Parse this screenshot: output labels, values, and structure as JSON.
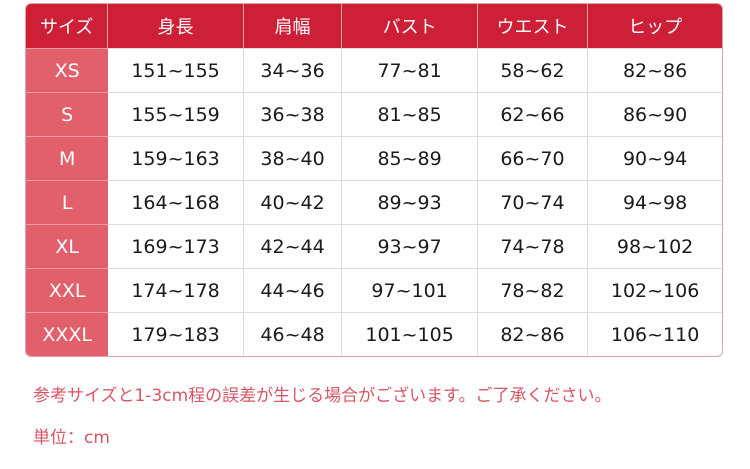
{
  "headers": [
    "サイズ",
    "身長",
    "肩幅",
    "バスト",
    "ウエスト",
    "ヒップ"
  ],
  "rows": [
    [
      "XS",
      "151~155",
      "34~36",
      "77~81",
      "58~62",
      "82~86"
    ],
    [
      "S",
      "155~159",
      "36~38",
      "81~85",
      "62~66",
      "86~90"
    ],
    [
      "M",
      "159~163",
      "38~40",
      "85~89",
      "66~70",
      "90~94"
    ],
    [
      "L",
      "164~168",
      "40~42",
      "89~93",
      "70~74",
      "94~98"
    ],
    [
      "XL",
      "169~173",
      "42~44",
      "93~97",
      "74~78",
      "98~102"
    ],
    [
      "XXL",
      "174~178",
      "44~46",
      "97~101",
      "78~82",
      "102~106"
    ],
    [
      "XXXL",
      "179~183",
      "46~48",
      "101~105",
      "82~86",
      "106~110"
    ]
  ],
  "notes": {
    "disclaimer": "参考サイズと1-3cm程の誤差が生じる場合がございます。ご了承ください。",
    "unit": "単位：cm"
  },
  "colors": {
    "header": "#cd1f35",
    "size_column": "#e2606c",
    "note_text": "#d85566"
  }
}
